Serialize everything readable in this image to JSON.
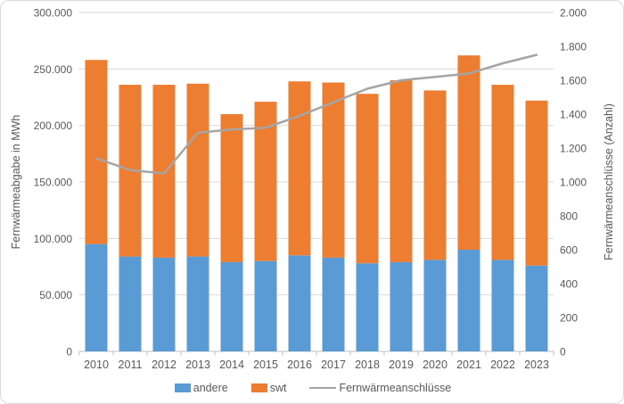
{
  "chart_data": {
    "type": "bar",
    "subtype": "stacked-columns-with-line-overlay",
    "categories": [
      "2010",
      "2011",
      "2012",
      "2013",
      "2014",
      "2015",
      "2016",
      "2017",
      "2018",
      "2019",
      "2020",
      "2021",
      "2022",
      "2023"
    ],
    "series": [
      {
        "name": "andere",
        "type": "bar",
        "axis": "left",
        "color": "#5B9BD5",
        "values": [
          95000,
          84000,
          83000,
          84000,
          79000,
          80000,
          85000,
          83000,
          78000,
          79000,
          81000,
          90000,
          81000,
          76000
        ]
      },
      {
        "name": "swt",
        "type": "bar",
        "axis": "left",
        "color": "#ED7D31",
        "values": [
          163000,
          152000,
          153000,
          153000,
          131000,
          141000,
          154000,
          155000,
          150000,
          161000,
          150000,
          172000,
          155000,
          146000
        ]
      },
      {
        "name": "Fernwärmeanschlüsse",
        "type": "line",
        "axis": "right",
        "color": "#A5A5A5",
        "values": [
          1140,
          1070,
          1050,
          1290,
          1310,
          1320,
          1390,
          1470,
          1550,
          1600,
          1620,
          1640,
          1700,
          1750
        ]
      }
    ],
    "stacked_totals": [
      258000,
      236000,
      236000,
      237000,
      210000,
      221000,
      239000,
      238000,
      228000,
      240000,
      231000,
      262000,
      236000,
      222000
    ],
    "left_axis": {
      "title": "Fernwärmeabgabe in MWh",
      "min": 0,
      "max": 300000,
      "step": 50000,
      "tick_labels": [
        "0",
        "50.000",
        "100.000",
        "150.000",
        "200.000",
        "250.000",
        "300.000"
      ]
    },
    "right_axis": {
      "title": "Fernwärmeanschlüsse (Anzahl)",
      "min": 0,
      "max": 2000,
      "step": 200,
      "tick_labels": [
        "0",
        "200",
        "400",
        "600",
        "800",
        "1.000",
        "1.200",
        "1.400",
        "1.600",
        "1.800",
        "2.000"
      ]
    },
    "grid": true,
    "legend_position": "bottom",
    "legend": [
      {
        "label": "andere",
        "marker": "rect",
        "color": "#5B9BD5"
      },
      {
        "label": "swt",
        "marker": "rect",
        "color": "#ED7D31"
      },
      {
        "label": "Fernwärmeanschlüsse",
        "marker": "line",
        "color": "#A5A5A5"
      }
    ],
    "colors": {
      "gridline": "#D9D9D9",
      "axis_line": "#BFBFBF",
      "text": "#595959",
      "background": "#FFFFFF",
      "frame_border": "#D9D9D9"
    }
  }
}
